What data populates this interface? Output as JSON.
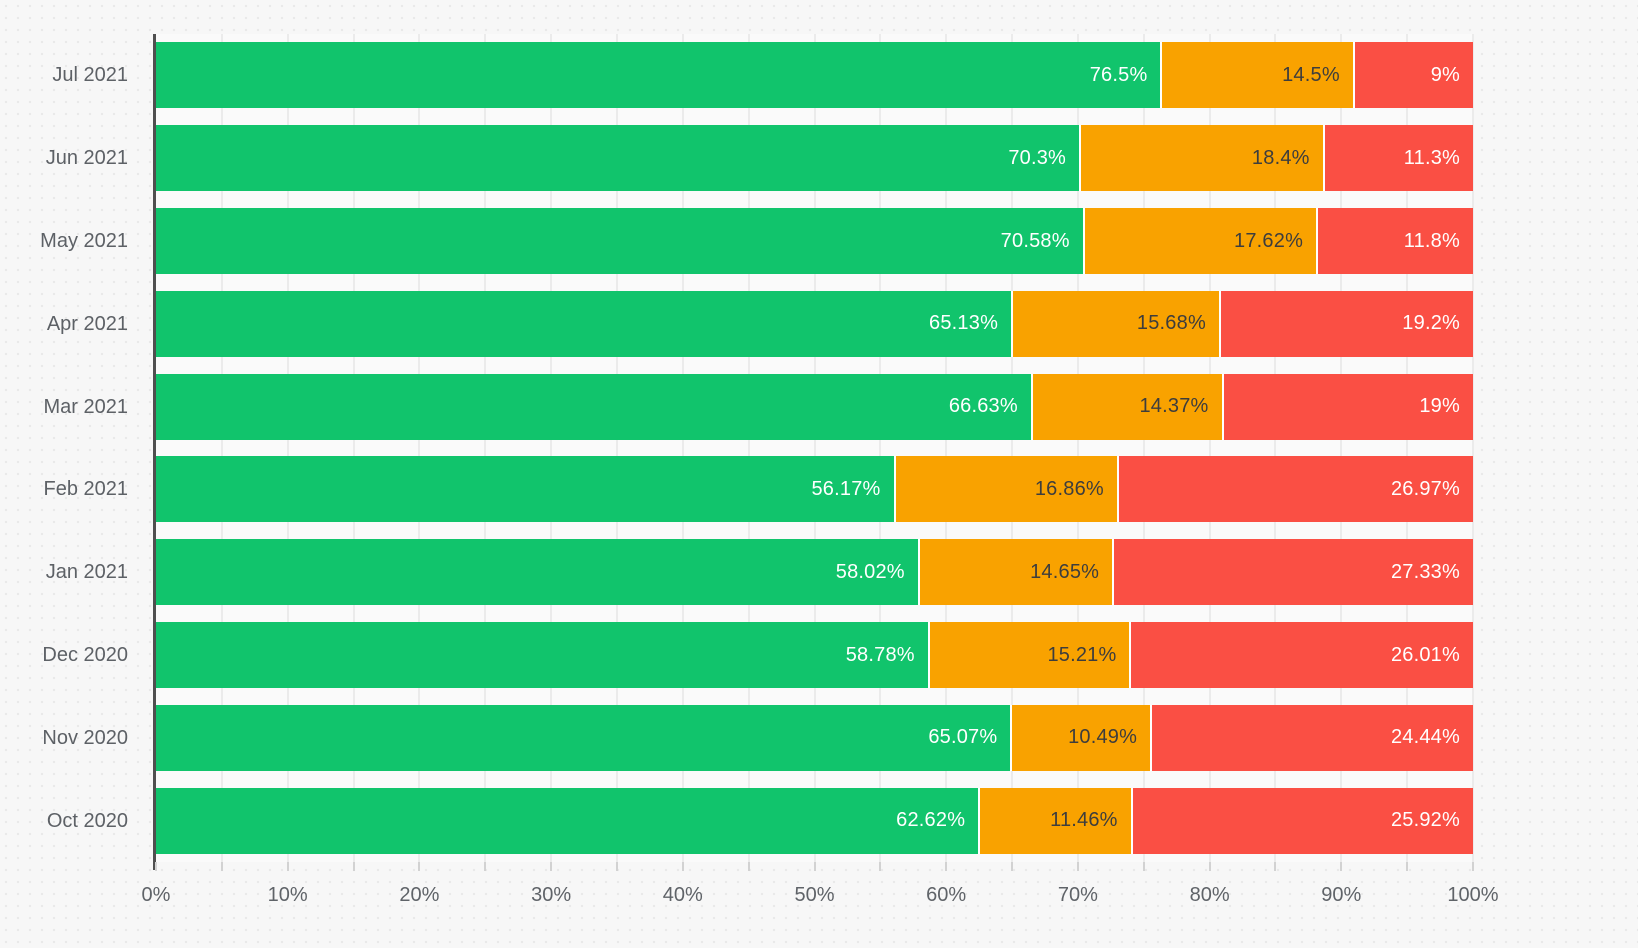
{
  "chart_data": {
    "type": "bar",
    "variant": "horizontal-stacked-100",
    "title": "",
    "xlabel": "",
    "ylabel": "",
    "grid": true,
    "legend": false,
    "categories": [
      "Jul 2021",
      "Jun 2021",
      "May 2021",
      "Apr 2021",
      "Mar 2021",
      "Feb 2021",
      "Jan 2021",
      "Dec 2020",
      "Nov 2020",
      "Oct 2020"
    ],
    "series": [
      {
        "name": "green",
        "color": "#11c46c",
        "label_color": "#ffffff",
        "values": [
          76.5,
          70.3,
          70.58,
          65.13,
          66.63,
          56.17,
          58.02,
          58.78,
          65.07,
          62.62
        ],
        "labels": [
          "76.5%",
          "70.3%",
          "70.58%",
          "65.13%",
          "66.63%",
          "56.17%",
          "58.02%",
          "58.78%",
          "65.07%",
          "62.62%"
        ]
      },
      {
        "name": "orange",
        "color": "#f9a200",
        "label_color": "#3d3d3d",
        "values": [
          14.5,
          18.4,
          17.62,
          15.68,
          14.37,
          16.86,
          14.65,
          15.21,
          10.49,
          11.46
        ],
        "labels": [
          "14.5%",
          "18.4%",
          "17.62%",
          "15.68%",
          "14.37%",
          "16.86%",
          "14.65%",
          "15.21%",
          "10.49%",
          "11.46%"
        ]
      },
      {
        "name": "red",
        "color": "#fa4f44",
        "label_color": "#ffffff",
        "values": [
          9,
          11.3,
          11.8,
          19.2,
          19,
          26.97,
          27.33,
          26.01,
          24.44,
          25.92
        ],
        "labels": [
          "9%",
          "11.3%",
          "11.8%",
          "19.2%",
          "19%",
          "26.97%",
          "27.33%",
          "26.01%",
          "24.44%",
          "25.92%"
        ]
      }
    ],
    "x_axis": {
      "range": [
        0,
        100
      ],
      "tick_labels": [
        "0%",
        "10%",
        "20%",
        "30%",
        "40%",
        "50%",
        "60%",
        "70%",
        "80%",
        "90%",
        "100%"
      ],
      "major_tick_step": 10,
      "minor_tick_step": 5,
      "legend_position": "none"
    }
  },
  "colors": {
    "page_background": "#f7f7f7",
    "plot_background": "#fafafa",
    "gridline": "#ebebeb",
    "axis_line": "#4f4f4f",
    "tick": "#d2d2d2",
    "axis_text": "#5f6368",
    "segment_separator": "#ffffff"
  }
}
